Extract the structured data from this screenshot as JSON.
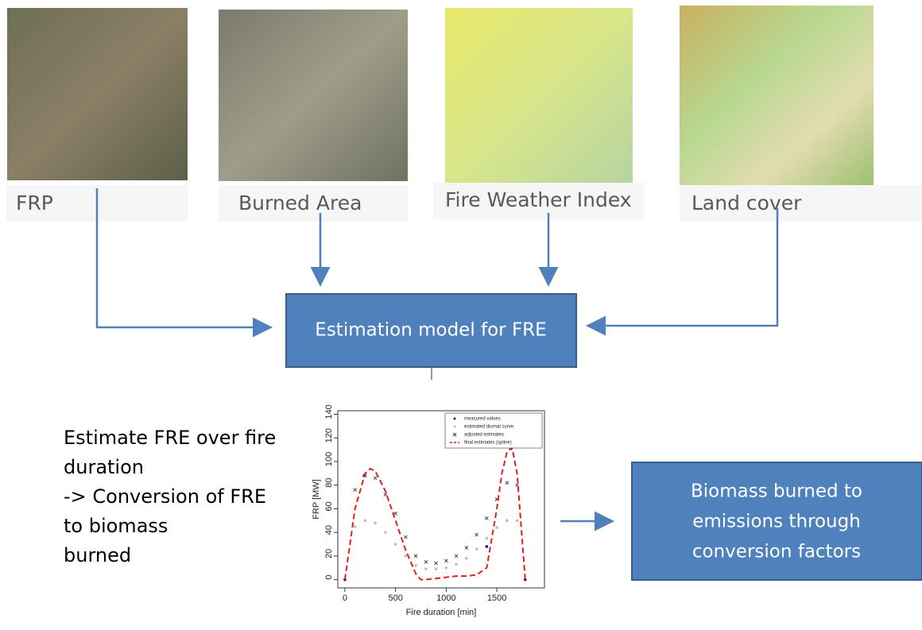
{
  "inputs": [
    {
      "label": "FRP"
    },
    {
      "label": "Burned Area"
    },
    {
      "label": "Fire Weather Index"
    },
    {
      "label": "Land cover"
    }
  ],
  "model_box": {
    "label": "Estimation model for FRE"
  },
  "description": {
    "lines": [
      "Estimate FRE over fire",
      "duration",
      "-> Conversion of FRE",
      "to biomass",
      "burned"
    ]
  },
  "output_box": {
    "lines": [
      "Biomass burned to",
      "emissions through",
      "conversion factors"
    ]
  },
  "chart": {
    "type": "scatter",
    "x_label": "Fire duration [min]",
    "y_label": "FRP [MW]",
    "xlim": [
      -70,
      1970
    ],
    "ylim": [
      -7,
      143
    ],
    "xticks": [
      0,
      500,
      1000,
      1500
    ],
    "yticks": [
      0,
      20,
      40,
      60,
      80,
      100,
      120,
      140
    ],
    "series": [
      {
        "name": "measured values",
        "color": "#1a1aa6",
        "marker": "dot",
        "x": [
          0,
          190,
          1400,
          1640,
          1780
        ],
        "values": [
          0,
          88,
          28,
          111,
          0
        ]
      },
      {
        "name": "estimated diurnal curve",
        "color": "#bdbdbd",
        "marker": "dot",
        "x": [
          100,
          200,
          300,
          400,
          500,
          600,
          700,
          800,
          900,
          1000,
          1100,
          1200,
          1300,
          1400,
          1500,
          1600,
          1700
        ],
        "values": [
          45,
          50,
          48,
          40,
          30,
          20,
          12,
          9,
          9,
          10,
          13,
          18,
          26,
          35,
          44,
          50,
          50
        ]
      },
      {
        "name": "adjusted estimates",
        "color": "#333333",
        "marker": "x",
        "x": [
          100,
          200,
          300,
          400,
          500,
          600,
          700,
          800,
          900,
          1000,
          1100,
          1200,
          1300,
          1400,
          1500,
          1600,
          1700
        ],
        "values": [
          76,
          88,
          86,
          72,
          56,
          36,
          20,
          15,
          14,
          16,
          20,
          27,
          38,
          52,
          68,
          82,
          80
        ]
      },
      {
        "name": "final estimates (spline)",
        "color": "#e02020",
        "marker": "dashed-line",
        "x": [
          0,
          100,
          200,
          250,
          300,
          400,
          500,
          600,
          700,
          750,
          800,
          900,
          1000,
          1100,
          1200,
          1300,
          1400,
          1500,
          1550,
          1600,
          1650,
          1700,
          1780
        ],
        "values": [
          0,
          60,
          90,
          94,
          92,
          75,
          50,
          25,
          5,
          0,
          0,
          1,
          2,
          3,
          3,
          4,
          10,
          60,
          90,
          108,
          112,
          90,
          0
        ]
      }
    ]
  }
}
